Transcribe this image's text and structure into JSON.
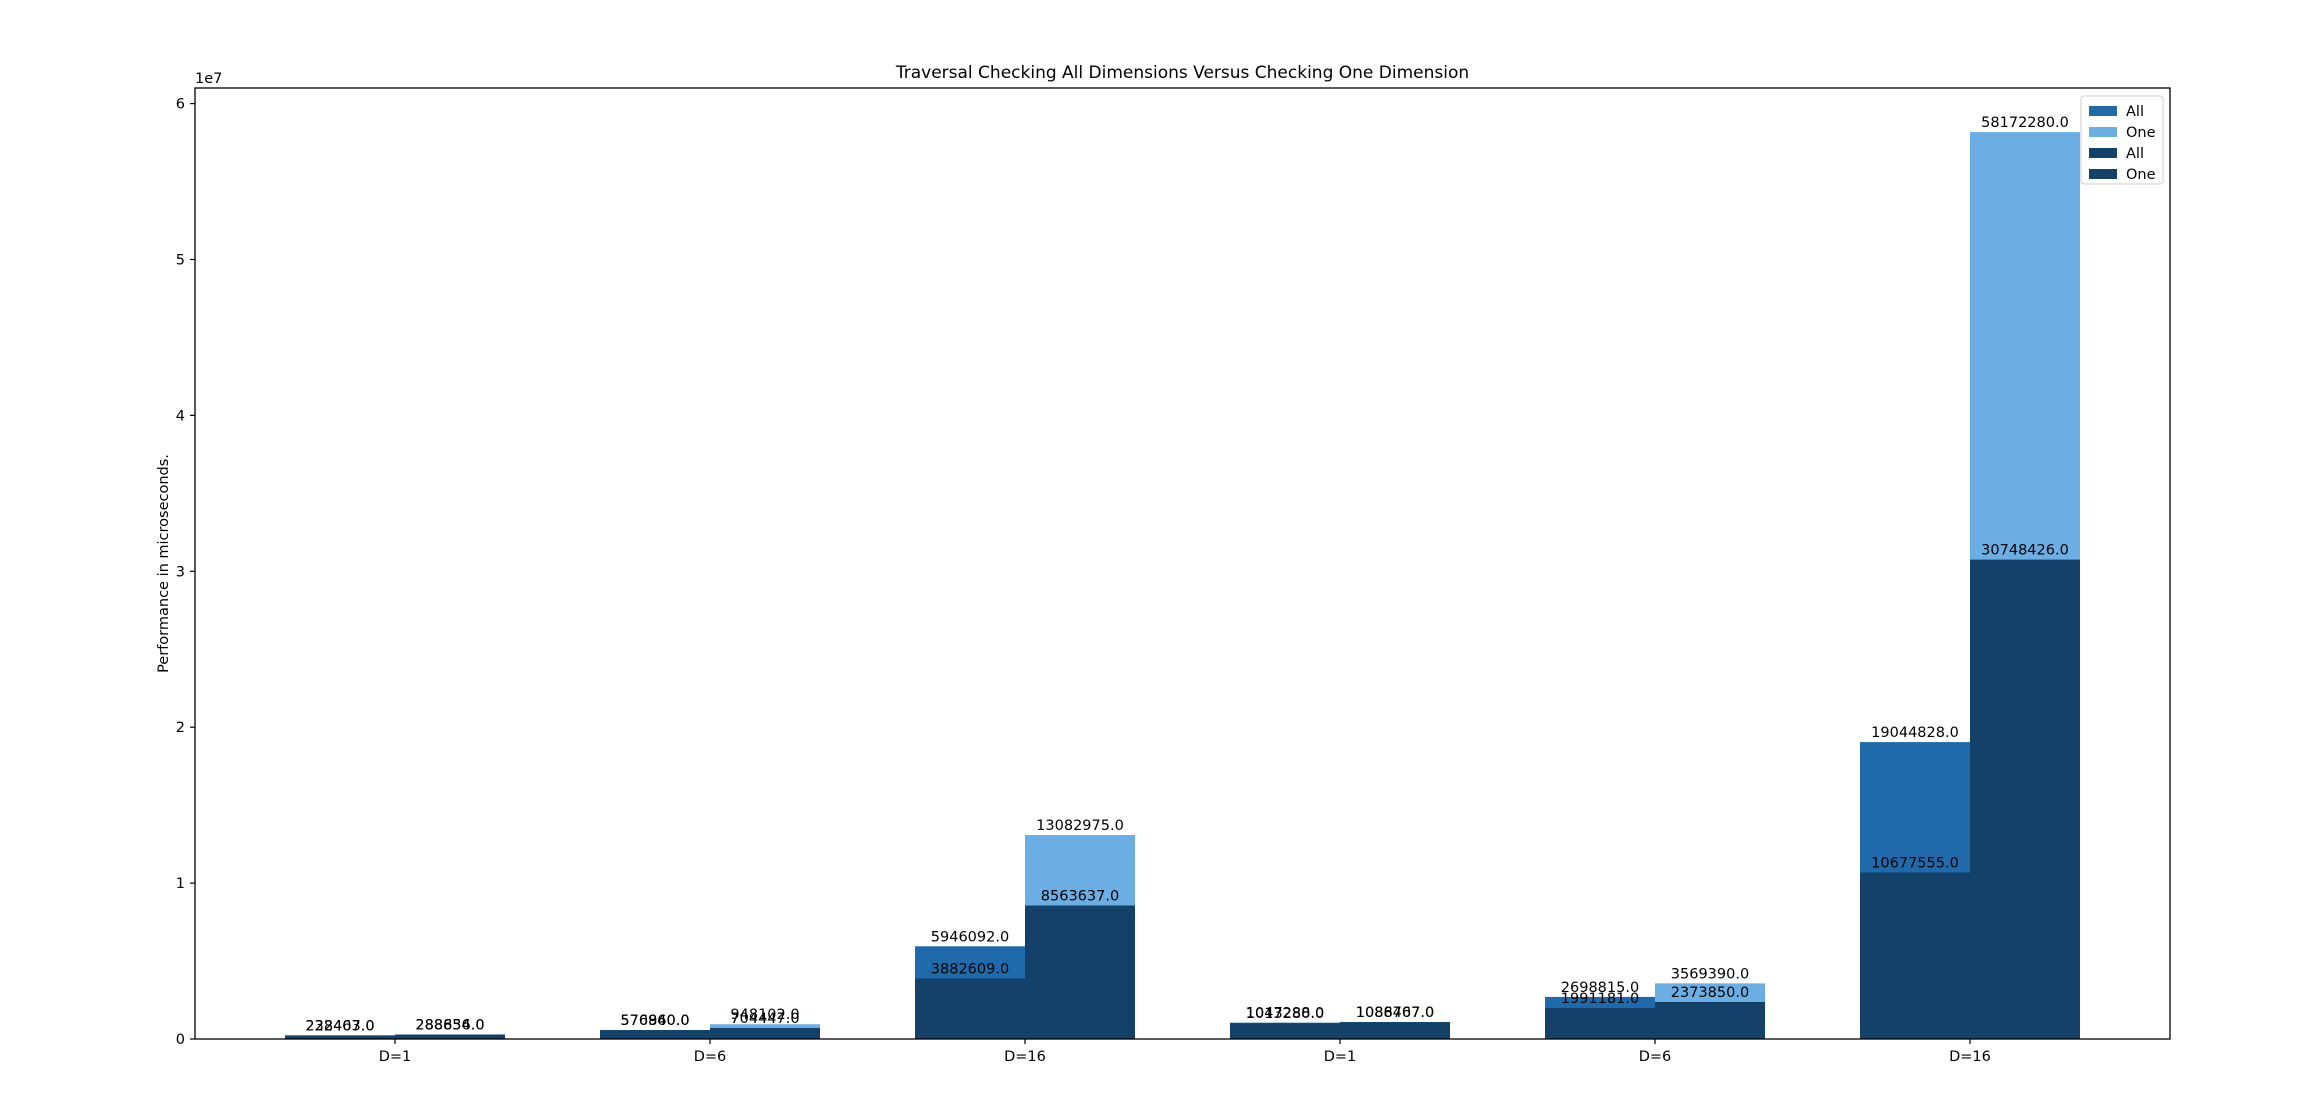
{
  "chart_data": {
    "type": "bar",
    "title": "Traversal Checking All Dimensions Versus Checking One Dimension",
    "xlabel": "",
    "ylabel": "Performance in microseconds.",
    "y_scale_label": "1e7",
    "ylim": [
      0,
      61000000
    ],
    "yticks": [
      0,
      1,
      2,
      3,
      4,
      5,
      6
    ],
    "categories": [
      "D=1",
      "D=6",
      "D=16",
      "D=1",
      "D=6",
      "D=16"
    ],
    "grid": false,
    "legend_position": "top-right",
    "series": [
      {
        "name": "All",
        "group": "left",
        "layer": "total",
        "color": "#1f6aab",
        "values": [
          232407.0,
          576940.0,
          5946092.0,
          1047288.0,
          2698815.0,
          19044828.0
        ]
      },
      {
        "name": "One",
        "group": "right",
        "layer": "total",
        "color": "#6aaee3",
        "values": [
          288656.0,
          948102.0,
          13082975.0,
          1088707.0,
          3569390.0,
          58172280.0
        ]
      },
      {
        "name": "All",
        "group": "left",
        "layer": "inner",
        "color": "#13416a",
        "values": [
          228463.0,
          570860.0,
          3882609.0,
          1013280.0,
          1991181.0,
          10677555.0
        ]
      },
      {
        "name": "One",
        "group": "right",
        "layer": "inner",
        "color": "#13416a",
        "values": [
          288834.0,
          704447.0,
          8563637.0,
          1086467.0,
          2373850.0,
          30748426.0
        ]
      }
    ],
    "data_label_format": "one-decimal",
    "legend": [
      {
        "label": "All",
        "color": "#1f6aab"
      },
      {
        "label": "One",
        "color": "#6aaee3"
      },
      {
        "label": "All",
        "color": "#13416a"
      },
      {
        "label": "One",
        "color": "#13416a"
      }
    ]
  }
}
